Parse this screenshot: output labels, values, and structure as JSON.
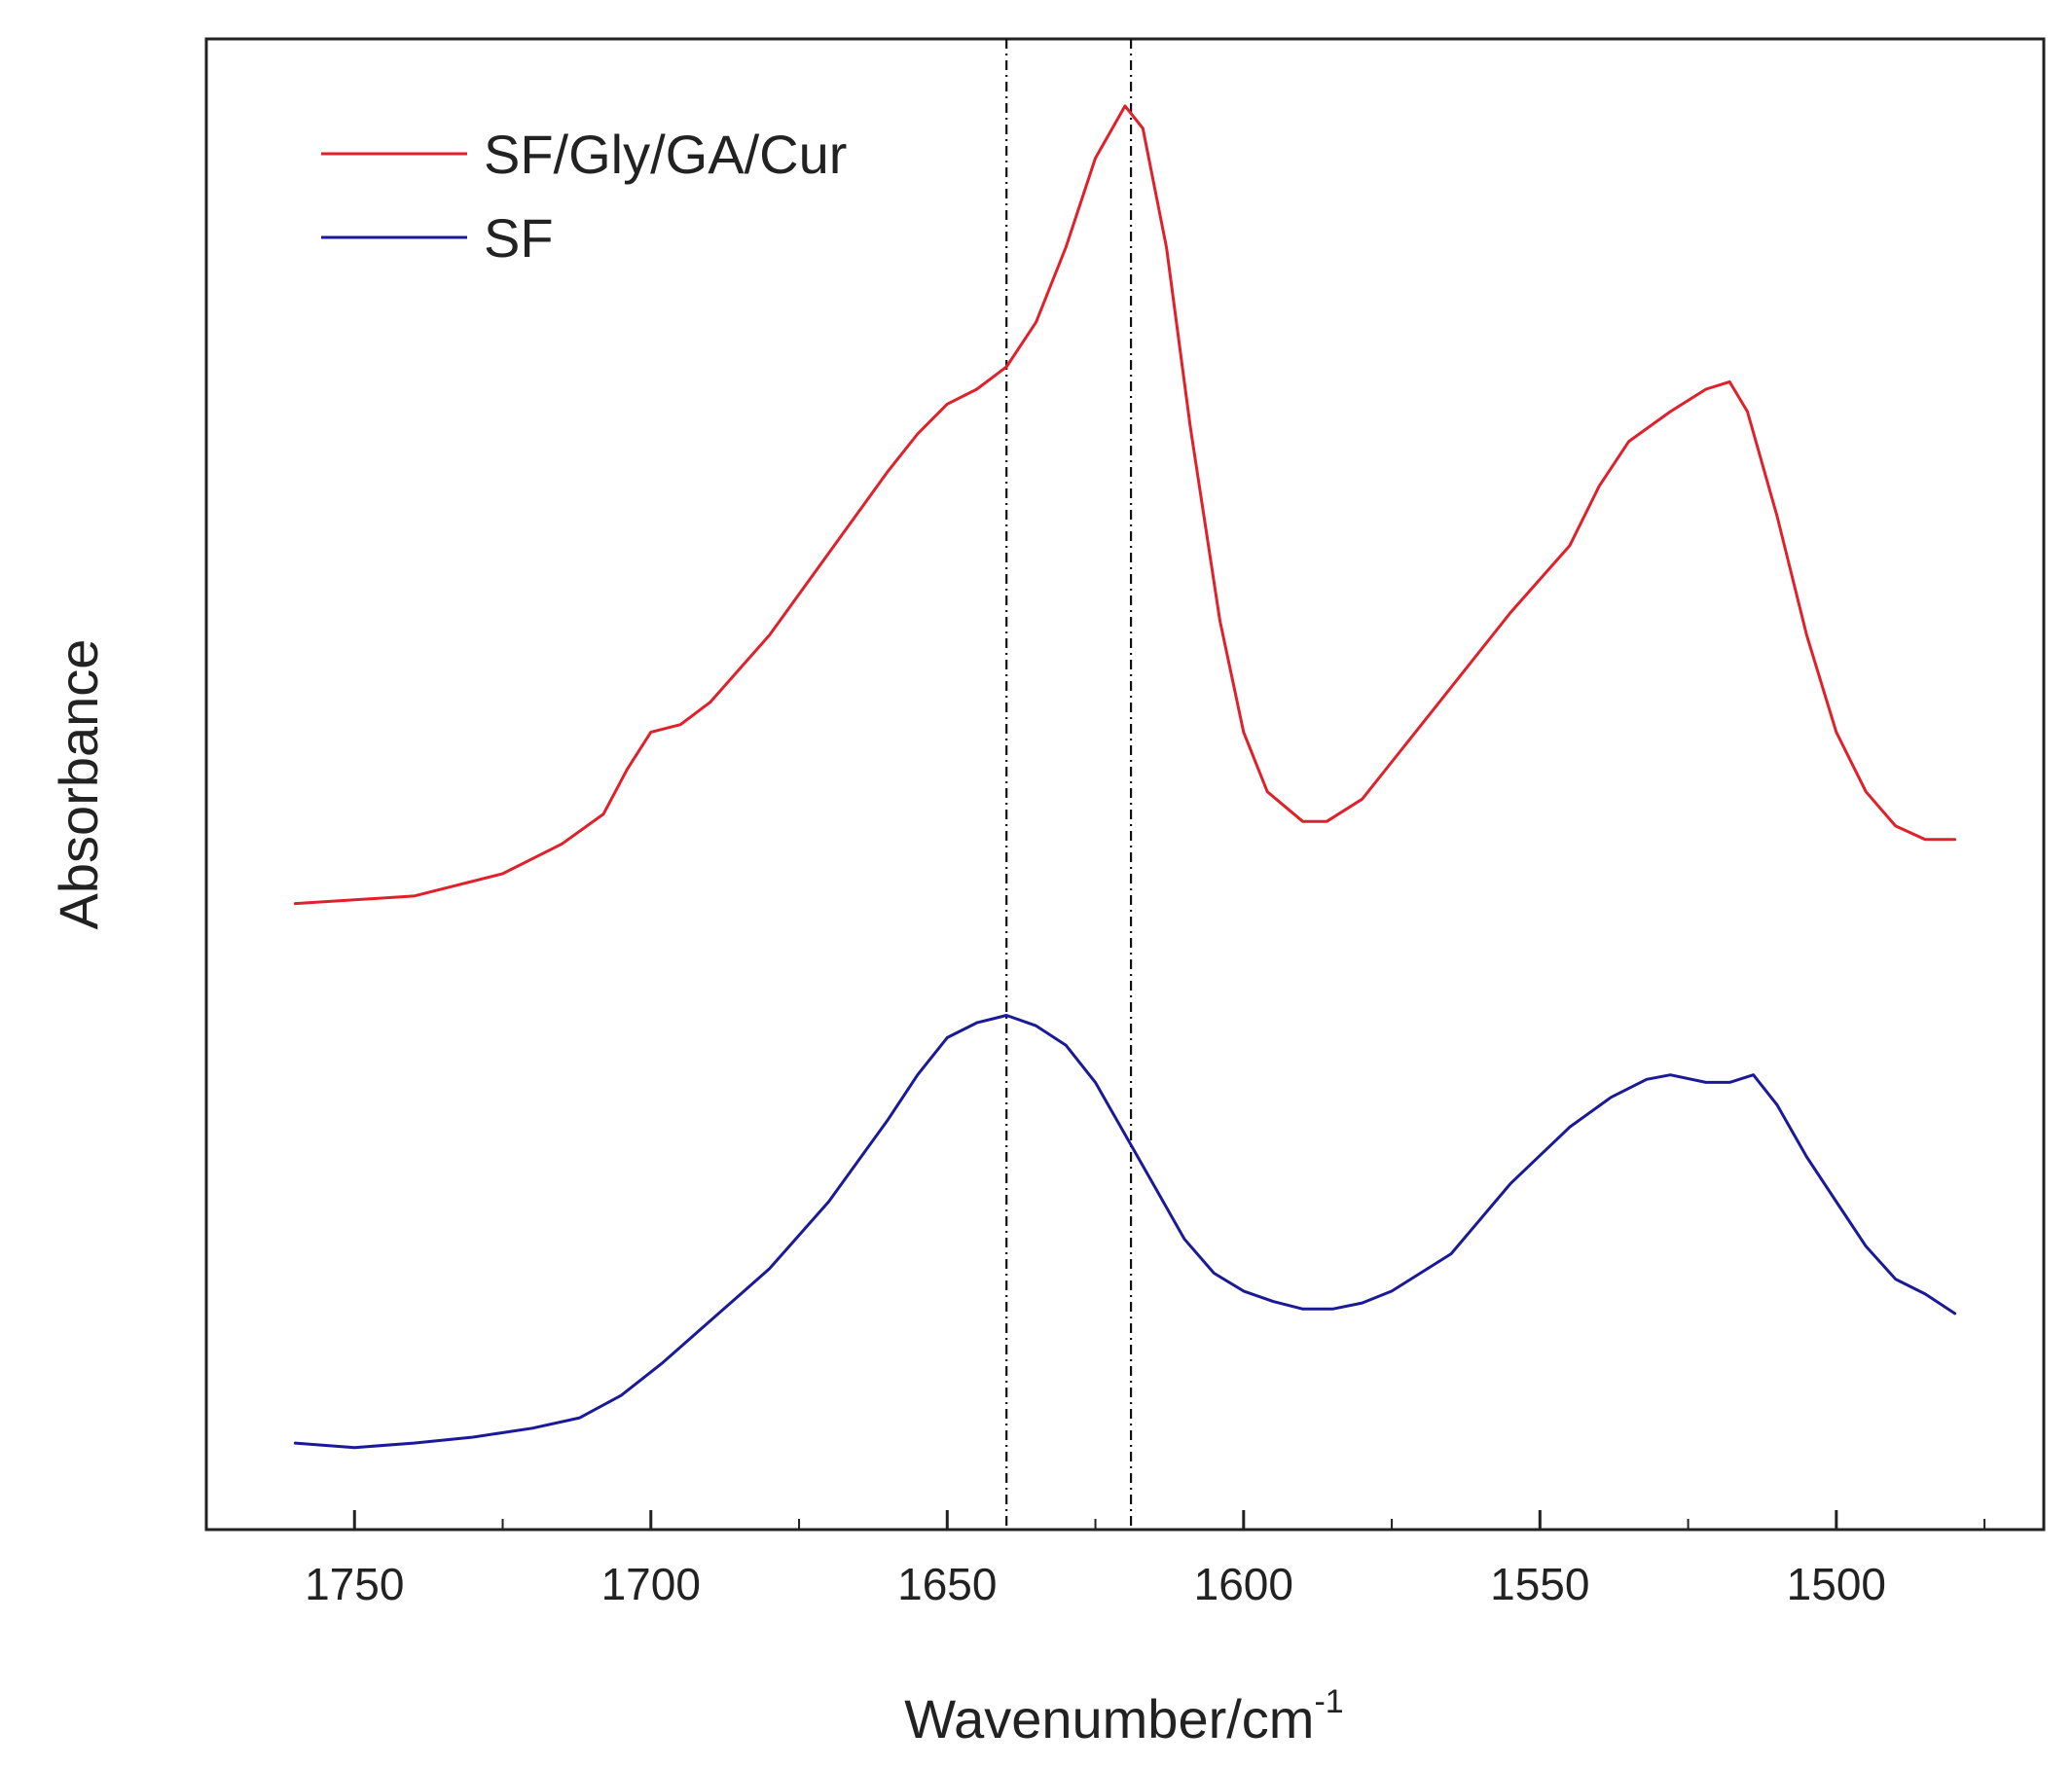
{
  "chart_data": {
    "type": "line",
    "title": "",
    "xlabel": "Wavenumber/cm",
    "xlabel_superscript": "-1",
    "ylabel": "Absorbance",
    "xlim": [
      1775,
      1465
    ],
    "x_reversed": true,
    "ylim": [
      0,
      1
    ],
    "y_ticks_shown": false,
    "grid": false,
    "legend_position": "top-left",
    "x_ticks": [
      1750,
      1700,
      1650,
      1600,
      1550,
      1500
    ],
    "x_tick_labels": [
      "1750",
      "1700",
      "1650",
      "1600",
      "1550",
      "1500"
    ],
    "x_minor_ticks": [
      1725,
      1675,
      1625,
      1575,
      1525,
      1475
    ],
    "reference_lines_x": [
      1640,
      1619
    ],
    "series": [
      {
        "name": "SF/Gly/GA/Cur",
        "color": "#e0202a",
        "x": [
          1760,
          1740,
          1725,
          1715,
          1708,
          1704,
          1700,
          1695,
          1690,
          1680,
          1670,
          1660,
          1655,
          1650,
          1645,
          1640,
          1635,
          1630,
          1625,
          1620,
          1617,
          1613,
          1609,
          1604,
          1600,
          1596,
          1590,
          1586,
          1580,
          1575,
          1565,
          1555,
          1545,
          1540,
          1535,
          1528,
          1522,
          1518,
          1515,
          1510,
          1505,
          1500,
          1495,
          1490,
          1485,
          1480
        ],
        "y": [
          0.42,
          0.425,
          0.44,
          0.46,
          0.48,
          0.51,
          0.535,
          0.54,
          0.555,
          0.6,
          0.655,
          0.71,
          0.735,
          0.755,
          0.765,
          0.78,
          0.81,
          0.86,
          0.92,
          0.955,
          0.94,
          0.86,
          0.74,
          0.61,
          0.535,
          0.495,
          0.475,
          0.475,
          0.49,
          0.515,
          0.565,
          0.615,
          0.66,
          0.7,
          0.73,
          0.75,
          0.765,
          0.77,
          0.75,
          0.68,
          0.6,
          0.535,
          0.495,
          0.472,
          0.463,
          0.463
        ]
      },
      {
        "name": "SF",
        "color": "#1a1a99",
        "x": [
          1760,
          1750,
          1740,
          1730,
          1720,
          1712,
          1705,
          1698,
          1690,
          1680,
          1670,
          1660,
          1655,
          1650,
          1645,
          1640,
          1635,
          1630,
          1625,
          1620,
          1615,
          1610,
          1605,
          1600,
          1595,
          1590,
          1585,
          1580,
          1575,
          1565,
          1555,
          1545,
          1538,
          1532,
          1528,
          1522,
          1518,
          1514,
          1510,
          1505,
          1500,
          1495,
          1490,
          1485,
          1480
        ],
        "y": [
          0.058,
          0.055,
          0.058,
          0.062,
          0.068,
          0.075,
          0.09,
          0.112,
          0.14,
          0.175,
          0.22,
          0.275,
          0.305,
          0.33,
          0.34,
          0.345,
          0.338,
          0.325,
          0.3,
          0.265,
          0.23,
          0.195,
          0.172,
          0.16,
          0.153,
          0.148,
          0.148,
          0.152,
          0.16,
          0.185,
          0.232,
          0.27,
          0.29,
          0.302,
          0.305,
          0.3,
          0.3,
          0.305,
          0.285,
          0.25,
          0.22,
          0.19,
          0.168,
          0.158,
          0.145
        ]
      }
    ]
  }
}
